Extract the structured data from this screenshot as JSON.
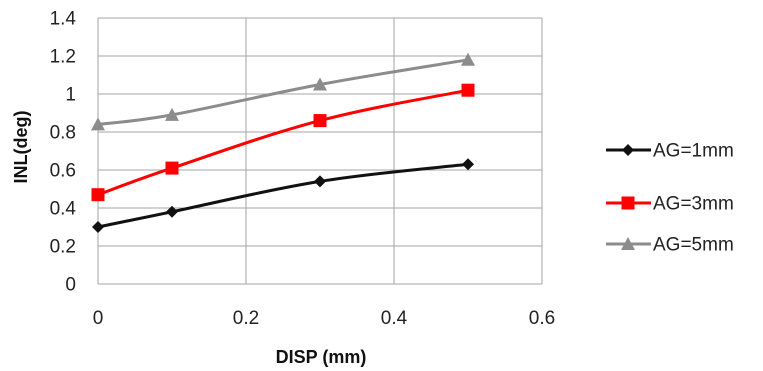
{
  "chart_data": {
    "type": "line",
    "title": "",
    "xlabel": "DISP (mm)",
    "ylabel": "INL(deg)",
    "xlim": [
      0,
      0.6
    ],
    "ylim": [
      0,
      1.4
    ],
    "x_ticks": [
      "0",
      "0.2",
      "0.4",
      "0.6"
    ],
    "y_ticks": [
      "0",
      "0.2",
      "0.4",
      "0.6",
      "0.8",
      "1",
      "1.2",
      "1.4"
    ],
    "grid": true,
    "legend_position": "right",
    "x": [
      0,
      0.1,
      0.3,
      0.5
    ],
    "series": [
      {
        "name": "AG=1mm",
        "values": [
          0.3,
          0.38,
          0.54,
          0.63
        ],
        "color": "#111111",
        "marker": "diamond"
      },
      {
        "name": "AG=3mm",
        "values": [
          0.47,
          0.61,
          0.86,
          1.02
        ],
        "color": "#ff0000",
        "marker": "square"
      },
      {
        "name": "AG=5mm",
        "values": [
          0.84,
          0.89,
          1.05,
          1.18
        ],
        "color": "#8c8c8c",
        "marker": "triangle"
      }
    ]
  }
}
